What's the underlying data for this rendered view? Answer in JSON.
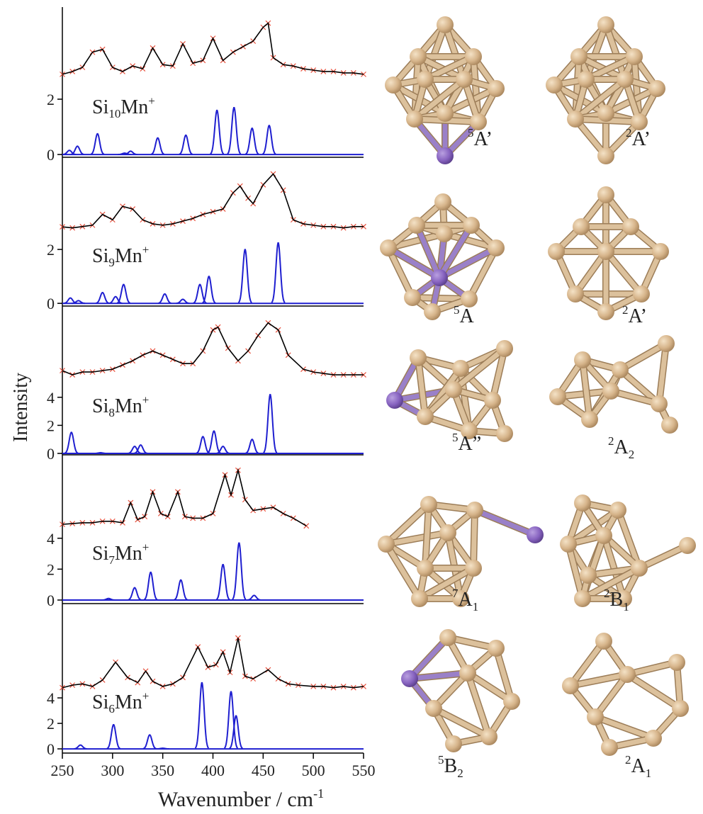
{
  "figure": {
    "ylabel": "Intensity",
    "xlabel": {
      "text": "Wavenumber / cm",
      "sup": "-1"
    }
  },
  "chart_data": [
    {
      "type": "line",
      "label": {
        "pre": "Si",
        "sub": "10",
        "mid": "Mn",
        "sup": "+"
      },
      "xlim": [
        250,
        550
      ],
      "ylim": [
        -0.1,
        5.33
      ],
      "yticks": [
        0,
        2
      ],
      "experiment": {
        "color": "#000000",
        "marker_color": "#e8503c",
        "x": [
          250,
          260,
          270,
          280,
          290,
          300,
          310,
          320,
          330,
          340,
          350,
          360,
          370,
          380,
          390,
          400,
          410,
          420,
          430,
          440,
          450,
          455,
          460,
          470,
          480,
          490,
          500,
          510,
          520,
          530,
          540,
          550
        ],
        "values": [
          2.9,
          3.0,
          3.15,
          3.7,
          3.8,
          3.15,
          3.0,
          3.2,
          3.1,
          3.85,
          3.25,
          3.2,
          4.0,
          3.3,
          3.4,
          4.2,
          3.4,
          3.7,
          3.9,
          4.1,
          4.6,
          4.75,
          3.5,
          3.25,
          3.2,
          3.1,
          3.05,
          3.0,
          3.0,
          2.95,
          2.95,
          2.9
        ]
      },
      "calculated": {
        "color": "#1f1fd0",
        "x": [
          257,
          265,
          285,
          312,
          318,
          345,
          373,
          404,
          421,
          439,
          456
        ],
        "values": [
          0.15,
          0.3,
          0.75,
          0.05,
          0.12,
          0.6,
          0.7,
          1.6,
          1.7,
          0.95,
          1.05
        ]
      }
    },
    {
      "type": "line",
      "label": {
        "pre": "Si",
        "sub": "9",
        "mid": "Mn",
        "sup": "+"
      },
      "xlim": [
        250,
        550
      ],
      "ylim": [
        -0.1,
        5.42
      ],
      "yticks": [
        0,
        2
      ],
      "experiment": {
        "color": "#000000",
        "marker_color": "#e8503c",
        "x": [
          250,
          260,
          270,
          280,
          290,
          300,
          310,
          320,
          330,
          340,
          350,
          360,
          370,
          380,
          390,
          400,
          410,
          420,
          427,
          435,
          440,
          450,
          460,
          470,
          480,
          490,
          500,
          510,
          520,
          530,
          540,
          550
        ],
        "values": [
          2.84,
          2.8,
          2.85,
          2.9,
          3.3,
          3.1,
          3.6,
          3.5,
          3.1,
          2.95,
          2.9,
          2.95,
          3.05,
          3.15,
          3.3,
          3.4,
          3.5,
          4.1,
          4.35,
          3.9,
          3.7,
          4.4,
          4.8,
          4.2,
          3.1,
          2.95,
          2.9,
          2.85,
          2.85,
          2.8,
          2.85,
          2.85
        ]
      },
      "calculated": {
        "color": "#1f1fd0",
        "x": [
          258,
          266,
          290,
          303,
          311,
          352,
          370,
          387,
          396,
          432,
          465
        ],
        "values": [
          0.2,
          0.1,
          0.4,
          0.25,
          0.7,
          0.35,
          0.15,
          0.7,
          1.0,
          2.0,
          2.25
        ]
      }
    },
    {
      "type": "line",
      "label": {
        "pre": "Si",
        "sub": "8",
        "mid": "Mn",
        "sup": "+"
      },
      "xlim": [
        250,
        550
      ],
      "ylim": [
        -0.1,
        10.5
      ],
      "yticks": [
        0,
        2,
        4
      ],
      "experiment": {
        "color": "#000000",
        "marker_color": "#e8503c",
        "x": [
          250,
          260,
          270,
          280,
          290,
          300,
          310,
          320,
          330,
          340,
          350,
          360,
          370,
          380,
          390,
          400,
          405,
          415,
          425,
          435,
          445,
          455,
          465,
          475,
          490,
          500,
          510,
          520,
          530,
          540,
          550
        ],
        "values": [
          5.9,
          5.6,
          5.8,
          5.8,
          5.9,
          6.0,
          6.3,
          6.6,
          7.0,
          7.3,
          7.0,
          6.7,
          6.4,
          6.4,
          7.3,
          8.8,
          9.0,
          7.5,
          6.6,
          7.3,
          8.4,
          9.3,
          8.8,
          7.0,
          6.0,
          5.8,
          5.7,
          5.6,
          5.6,
          5.6,
          5.6
        ]
      },
      "calculated": {
        "color": "#1f1fd0",
        "x": [
          259,
          288,
          322,
          328,
          390,
          401,
          410,
          439,
          457
        ],
        "values": [
          1.5,
          0.05,
          0.5,
          0.6,
          1.2,
          1.6,
          0.5,
          1.0,
          4.2
        ]
      }
    },
    {
      "type": "line",
      "label": {
        "pre": "Si",
        "sub": "7",
        "mid": "Mn",
        "sup": "+"
      },
      "xlim": [
        250,
        550
      ],
      "ylim": [
        -0.23,
        9.4
      ],
      "yticks": [
        0,
        2,
        4
      ],
      "experiment": {
        "color": "#000000",
        "marker_color": "#e8503c",
        "x": [
          250,
          260,
          270,
          280,
          290,
          300,
          310,
          318,
          325,
          332,
          340,
          348,
          355,
          365,
          372,
          380,
          390,
          400,
          412,
          418,
          425,
          432,
          440,
          450,
          460,
          470,
          480,
          493
        ],
        "values": [
          4.9,
          4.95,
          5.0,
          5.0,
          5.1,
          5.1,
          5.0,
          6.3,
          5.2,
          5.4,
          7.0,
          5.6,
          5.4,
          7.0,
          5.4,
          5.3,
          5.3,
          5.6,
          8.1,
          6.8,
          8.4,
          6.5,
          5.8,
          5.9,
          6.0,
          5.6,
          5.3,
          4.8
        ]
      },
      "calculated": {
        "color": "#1f1fd0",
        "x": [
          296,
          322,
          338,
          368,
          410,
          426,
          441
        ],
        "values": [
          0.1,
          0.8,
          1.8,
          1.3,
          2.3,
          3.7,
          0.3
        ]
      }
    },
    {
      "type": "line",
      "label": {
        "pre": "Si",
        "sub": "6",
        "mid": "Mn",
        "sup": "+"
      },
      "xlim": [
        250,
        550
      ],
      "ylim": [
        -0.33,
        11.4
      ],
      "yticks": [
        0,
        2,
        4
      ],
      "xticks": [
        250,
        300,
        350,
        400,
        450,
        500,
        550
      ],
      "experiment": {
        "color": "#000000",
        "marker_color": "#e8503c",
        "x": [
          250,
          260,
          270,
          280,
          290,
          303,
          315,
          325,
          333,
          340,
          350,
          360,
          370,
          385,
          395,
          403,
          410,
          417,
          425,
          432,
          440,
          455,
          465,
          475,
          485,
          500,
          510,
          520,
          530,
          540,
          550
        ],
        "values": [
          4.8,
          5.0,
          5.1,
          4.9,
          5.4,
          6.8,
          5.6,
          5.2,
          6.1,
          5.3,
          4.9,
          5.1,
          5.6,
          8.0,
          6.4,
          6.6,
          7.6,
          6.0,
          8.7,
          5.7,
          5.5,
          6.2,
          5.5,
          5.1,
          5.0,
          4.9,
          4.9,
          4.8,
          4.9,
          4.8,
          4.9
        ]
      },
      "calculated": {
        "color": "#1f1fd0",
        "x": [
          268,
          301,
          337,
          350,
          389,
          418,
          423
        ],
        "values": [
          0.3,
          1.9,
          1.1,
          0.05,
          5.2,
          4.5,
          2.6
        ]
      }
    }
  ],
  "structures": [
    {
      "sup": "5",
      "text": "A’"
    },
    {
      "sup": "2",
      "text": "A’"
    },
    {
      "sup": "5",
      "text": "A"
    },
    {
      "sup": "2",
      "text": "A’"
    },
    {
      "sup": "5",
      "text": "A”"
    },
    {
      "sup": "2",
      "text": "A",
      "sub": "2"
    },
    {
      "sup": "7",
      "text": "A",
      "sub": "1"
    },
    {
      "sup": "2",
      "text": "B",
      "sub": "1"
    },
    {
      "sup": "5",
      "text": "B",
      "sub": "2"
    },
    {
      "sup": "2",
      "text": "A",
      "sub": "1"
    }
  ]
}
